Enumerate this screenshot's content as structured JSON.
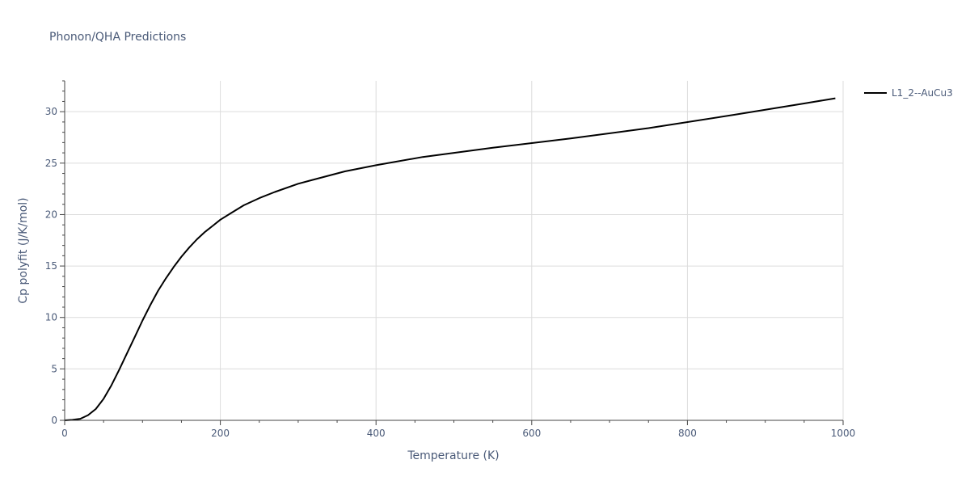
{
  "chart_data": {
    "type": "line",
    "title": "Phonon/QHA Predictions",
    "xlabel": "Temperature (K)",
    "ylabel": "Cp polyfit (J/K/mol)",
    "xlim": [
      0,
      1000
    ],
    "ylim": [
      0,
      33
    ],
    "xticks": [
      0,
      200,
      400,
      600,
      800,
      1000
    ],
    "yticks": [
      0,
      5,
      10,
      15,
      20,
      25,
      30
    ],
    "grid": true,
    "legend_position": "top-right",
    "series": [
      {
        "name": "L1_2--AuCu3",
        "color": "#000000",
        "x": [
          0,
          10,
          20,
          30,
          40,
          50,
          60,
          70,
          80,
          90,
          100,
          110,
          120,
          130,
          140,
          150,
          160,
          170,
          180,
          190,
          200,
          215,
          230,
          250,
          270,
          300,
          330,
          360,
          400,
          460,
          550,
          650,
          750,
          860,
          950,
          990
        ],
        "y": [
          0,
          0.05,
          0.15,
          0.5,
          1.1,
          2.1,
          3.4,
          4.9,
          6.5,
          8.1,
          9.7,
          11.2,
          12.6,
          13.8,
          14.9,
          15.9,
          16.8,
          17.6,
          18.3,
          18.9,
          19.5,
          20.2,
          20.9,
          21.6,
          22.2,
          23.0,
          23.6,
          24.2,
          24.8,
          25.6,
          26.5,
          27.4,
          28.4,
          29.7,
          30.8,
          31.3
        ]
      }
    ]
  }
}
